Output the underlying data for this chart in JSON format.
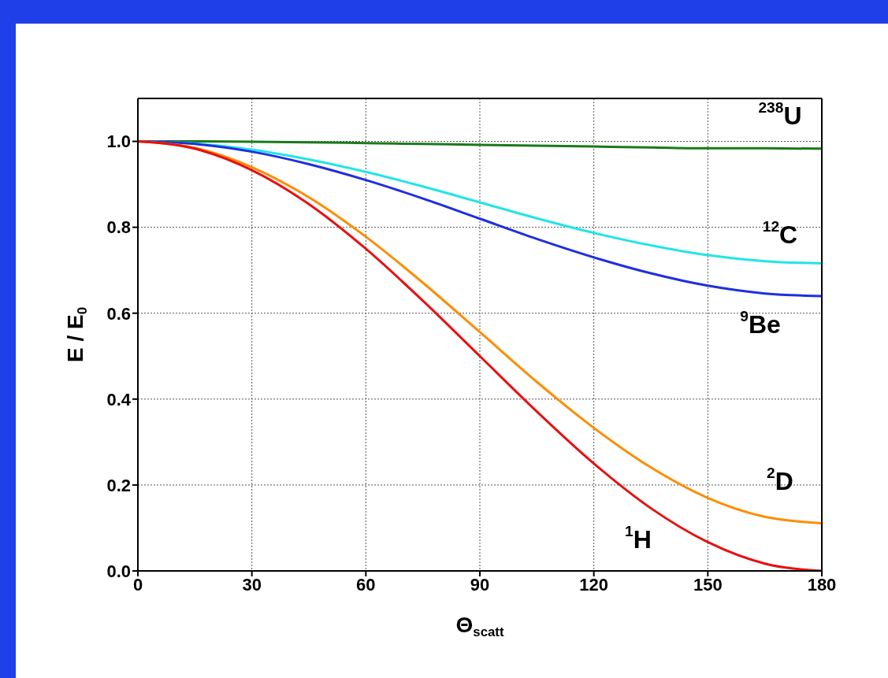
{
  "chart_data": {
    "type": "line",
    "xlabel": "Θ$_{scatt}$",
    "ylabel": "E / E$_{0}$",
    "x": [
      0,
      15,
      30,
      45,
      60,
      75,
      90,
      105,
      120,
      135,
      150,
      165,
      180
    ],
    "series": [
      {
        "color": "#1a7a1a",
        "values": [
          1,
          1,
          0.999,
          0.998,
          0.996,
          0.994,
          0.992,
          0.99,
          0.988,
          0.986,
          0.984,
          0.984,
          0.983
        ]
      },
      {
        "color": "#22e5e5",
        "values": [
          1,
          0.995,
          0.981,
          0.958,
          0.929,
          0.895,
          0.858,
          0.821,
          0.787,
          0.758,
          0.735,
          0.721,
          0.716
        ]
      },
      {
        "color": "#1f2ee0",
        "values": [
          1,
          0.994,
          0.976,
          0.947,
          0.91,
          0.867,
          0.82,
          0.773,
          0.73,
          0.693,
          0.664,
          0.646,
          0.64
        ]
      },
      {
        "color": "#ff8c00",
        "values": [
          1,
          0.985,
          0.94,
          0.87,
          0.778,
          0.671,
          0.556,
          0.44,
          0.333,
          0.241,
          0.17,
          0.126,
          0.111
        ]
      },
      {
        "color": "#e81010",
        "values": [
          1,
          0.983,
          0.933,
          0.854,
          0.75,
          0.629,
          0.5,
          0.371,
          0.25,
          0.146,
          0.067,
          0.017,
          0
        ]
      }
    ],
    "xlim": [
      0,
      180
    ],
    "xticks": [
      0,
      30,
      60,
      90,
      120,
      150,
      180
    ],
    "ylim": [
      0,
      1.1
    ],
    "yticks": [
      {
        "value": 0,
        "label": "0.0"
      },
      {
        "value": 0.2,
        "label": "0.2"
      },
      {
        "value": 0.4,
        "label": "0.4"
      },
      {
        "value": 0.6,
        "label": "0.6"
      },
      {
        "value": 0.8,
        "label": "0.8"
      },
      {
        "value": 1,
        "label": "1.0"
      }
    ],
    "grid": true,
    "marker": "none",
    "line_style": "solid",
    "legend": false,
    "annotations": [
      "$^{238}$U",
      "$^{12}$C",
      "$^{9}$Be",
      "$^{2}$D",
      "$^{1}$H"
    ]
  }
}
